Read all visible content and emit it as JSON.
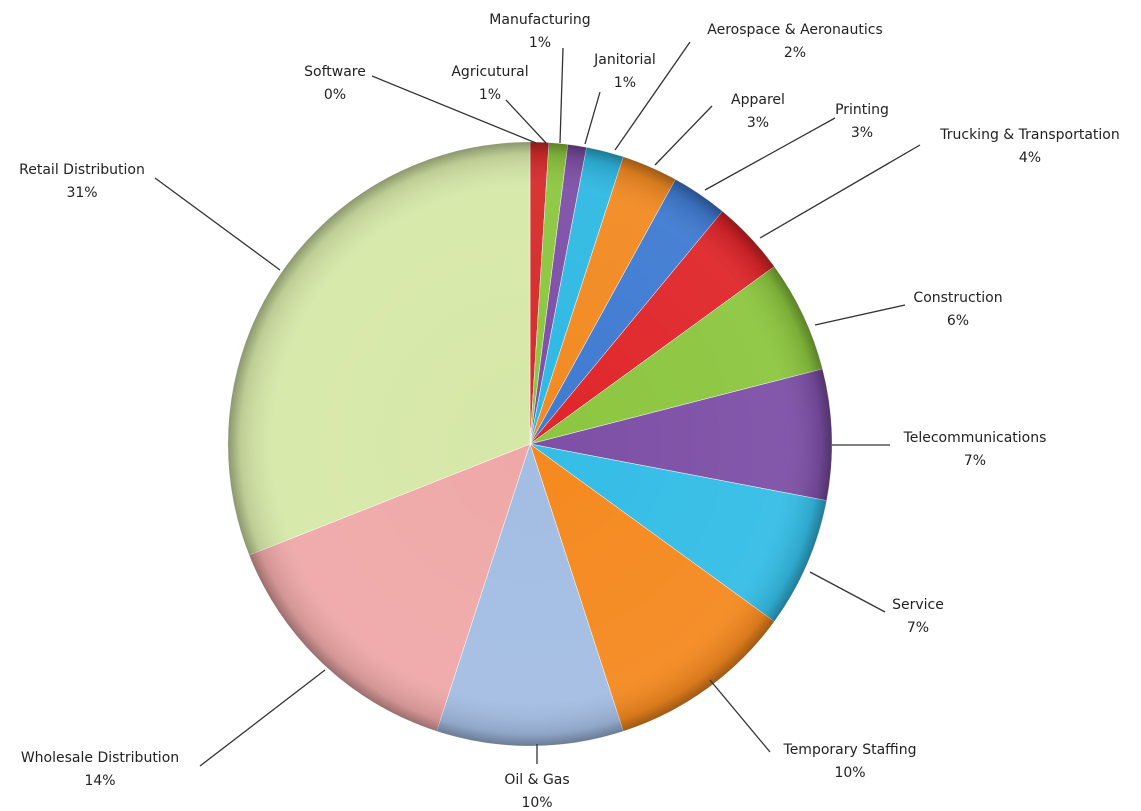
{
  "chart_data": {
    "type": "pie",
    "categories": [
      "Software",
      "Agricutural",
      "Manufacturing",
      "Janitorial",
      "Aerospace & Aeronautics",
      "Apparel",
      "Printing",
      "Trucking & Transportation",
      "Construction",
      "Telecommunications",
      "Service",
      "Temporary Staffing",
      "Oil & Gas",
      "Wholesale Distribution",
      "Retail Distribution"
    ],
    "values": [
      0,
      1,
      1,
      1,
      2,
      3,
      3,
      4,
      6,
      7,
      7,
      10,
      10,
      14,
      31
    ],
    "value_labels": [
      "0%",
      "1%",
      "1%",
      "1%",
      "2%",
      "3%",
      "3%",
      "4%",
      "6%",
      "7%",
      "7%",
      "10%",
      "10%",
      "14%",
      "31%"
    ],
    "colors": [
      "#a02828",
      "#d62b2b",
      "#8cc63f",
      "#7d4fa6",
      "#2fb9e3",
      "#f28a22",
      "#3f7bd2",
      "#e0262a",
      "#8cc63f",
      "#7d4fa6",
      "#34bde6",
      "#f5891f",
      "#a3bde3",
      "#efa8a8",
      "#d6e8a8"
    ]
  }
}
